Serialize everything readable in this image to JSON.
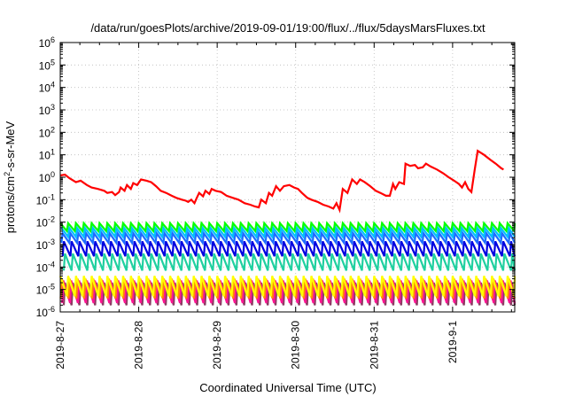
{
  "chart_data": {
    "type": "line",
    "title": "/data/run/goesPlots/archive/2019-09-01/19:00/flux/../flux/5daysMarsFluxes.txt",
    "xlabel": "Coordinated Universal Time (UTC)",
    "ylabel_parts": {
      "pre": "protons/cm",
      "sup": "2",
      "post": "-s-sr-MeV"
    },
    "y_scale": "log",
    "ylim": [
      1e-06,
      1000000.0
    ],
    "x_domain": [
      "2019-08-27",
      "2019-09-01 19:00"
    ],
    "x_ticks": [
      "2019-8-27",
      "2019-8-28",
      "2019-8-29",
      "2019-8-30",
      "2019-8-31",
      "2019-9-1"
    ],
    "y_ticks": [
      {
        "base": "10",
        "exp": "-6"
      },
      {
        "base": "10",
        "exp": "-5"
      },
      {
        "base": "10",
        "exp": "-4"
      },
      {
        "base": "10",
        "exp": "-3"
      },
      {
        "base": "10",
        "exp": "-2"
      },
      {
        "base": "10",
        "exp": "-1"
      },
      {
        "base": "10",
        "exp": "0"
      },
      {
        "base": "10",
        "exp": "1"
      },
      {
        "base": "10",
        "exp": "2"
      },
      {
        "base": "10",
        "exp": "3"
      },
      {
        "base": "10",
        "exp": "4"
      },
      {
        "base": "10",
        "exp": "5"
      },
      {
        "base": "10",
        "exp": "6"
      }
    ],
    "grid": true,
    "legend": "none",
    "series": [
      {
        "color": "#ff0000",
        "pattern": "segments",
        "points": [
          [
            0.0,
            1.2
          ],
          [
            0.06,
            1.3
          ],
          [
            0.12,
            0.9
          ],
          [
            0.2,
            0.6
          ],
          [
            0.26,
            0.7
          ],
          [
            0.34,
            0.45
          ],
          [
            0.4,
            0.35
          ],
          [
            0.48,
            0.3
          ],
          [
            0.56,
            0.25
          ],
          [
            0.6,
            0.2
          ],
          [
            0.66,
            0.22
          ],
          [
            0.7,
            0.16
          ],
          [
            0.75,
            0.22
          ],
          [
            0.77,
            0.35
          ],
          [
            0.82,
            0.25
          ],
          [
            0.85,
            0.45
          ],
          [
            0.9,
            0.3
          ],
          [
            0.93,
            0.55
          ],
          [
            0.98,
            0.45
          ],
          [
            1.03,
            0.8
          ],
          [
            1.1,
            0.7
          ],
          [
            1.16,
            0.6
          ],
          [
            1.22,
            0.4
          ],
          [
            1.28,
            0.25
          ],
          [
            1.35,
            0.2
          ],
          [
            1.42,
            0.15
          ],
          [
            1.48,
            0.12
          ],
          [
            1.55,
            0.1
          ],
          [
            1.6,
            0.09
          ],
          [
            1.63,
            0.08
          ],
          [
            1.67,
            0.1
          ],
          [
            1.71,
            0.07
          ],
          [
            1.74,
            0.12
          ],
          [
            1.77,
            0.2
          ],
          [
            1.82,
            0.14
          ],
          [
            1.85,
            0.25
          ],
          [
            1.9,
            0.18
          ],
          [
            1.93,
            0.3
          ],
          [
            1.98,
            0.25
          ],
          [
            2.05,
            0.22
          ],
          [
            2.12,
            0.15
          ],
          [
            2.2,
            0.12
          ],
          [
            2.27,
            0.1
          ],
          [
            2.35,
            0.07
          ],
          [
            2.42,
            0.06
          ],
          [
            2.48,
            0.05
          ],
          [
            2.53,
            0.045
          ],
          [
            2.56,
            0.1
          ],
          [
            2.62,
            0.07
          ],
          [
            2.66,
            0.2
          ],
          [
            2.7,
            0.15
          ],
          [
            2.75,
            0.4
          ],
          [
            2.8,
            0.25
          ],
          [
            2.85,
            0.4
          ],
          [
            2.92,
            0.45
          ],
          [
            2.98,
            0.35
          ],
          [
            3.03,
            0.3
          ],
          [
            3.08,
            0.2
          ],
          [
            3.15,
            0.12
          ],
          [
            3.2,
            0.1
          ],
          [
            3.28,
            0.08
          ],
          [
            3.35,
            0.06
          ],
          [
            3.42,
            0.05
          ],
          [
            3.48,
            0.04
          ],
          [
            3.52,
            0.07
          ],
          [
            3.56,
            0.035
          ],
          [
            3.6,
            0.3
          ],
          [
            3.66,
            0.2
          ],
          [
            3.72,
            0.8
          ],
          [
            3.78,
            0.5
          ],
          [
            3.82,
            0.8
          ],
          [
            3.88,
            0.6
          ],
          [
            3.95,
            0.4
          ],
          [
            4.02,
            0.25
          ],
          [
            4.08,
            0.2
          ],
          [
            4.15,
            0.15
          ],
          [
            4.2,
            0.15
          ],
          [
            4.24,
            0.5
          ],
          [
            4.27,
            0.3
          ],
          [
            4.32,
            0.6
          ],
          [
            4.38,
            0.5
          ],
          [
            4.4,
            4.0
          ],
          [
            4.46,
            3.2
          ],
          [
            4.52,
            3.5
          ],
          [
            4.56,
            2.5
          ],
          [
            4.62,
            2.8
          ],
          [
            4.66,
            4.0
          ],
          [
            4.72,
            3.0
          ],
          [
            4.8,
            2.2
          ],
          [
            4.88,
            1.5
          ],
          [
            4.95,
            1.0
          ],
          [
            5.02,
            0.7
          ],
          [
            5.08,
            0.5
          ],
          [
            5.12,
            0.35
          ],
          [
            5.16,
            0.6
          ],
          [
            5.2,
            0.3
          ],
          [
            5.24,
            0.22
          ],
          [
            5.28,
            2.0
          ],
          [
            5.32,
            15.0
          ],
          [
            5.4,
            10.0
          ],
          [
            5.48,
            6.0
          ],
          [
            5.55,
            4.0
          ],
          [
            5.62,
            2.5
          ],
          [
            5.65,
            2.2
          ]
        ]
      },
      {
        "color": "#00ff00",
        "pattern": "sawtooth",
        "period": 0.1,
        "phase": 0.0,
        "top": 0.009,
        "bottom": 0.004
      },
      {
        "color": "#00bfff",
        "pattern": "sawtooth",
        "period": 0.1,
        "phase": 0.015,
        "top": 0.0055,
        "bottom": 0.0022
      },
      {
        "color": "#1e6bff",
        "pattern": "sawtooth",
        "period": 0.1,
        "phase": 0.03,
        "top": 0.0032,
        "bottom": 0.0012
      },
      {
        "color": "#0000e0",
        "pattern": "sawtooth",
        "period": 0.1,
        "phase": 0.045,
        "top": 0.0014,
        "bottom": 0.0003
      },
      {
        "color": "#20d0a0",
        "pattern": "sawtooth",
        "period": 0.1,
        "phase": 0.06,
        "top": 0.0004,
        "bottom": 7e-05
      },
      {
        "color": "#ffff00",
        "pattern": "sawtooth",
        "period": 0.1,
        "phase": 0.0,
        "top": 4e-05,
        "bottom": 5e-06
      },
      {
        "color": "#ff8c00",
        "pattern": "sawtooth",
        "period": 0.1,
        "phase": 0.02,
        "top": 3e-05,
        "bottom": 4e-06
      },
      {
        "color": "#ff1493",
        "pattern": "sawtooth",
        "period": 0.1,
        "phase": 0.04,
        "top": 2.5e-05,
        "bottom": 2.5e-06
      },
      {
        "color": "#8b3a62",
        "pattern": "sawtooth",
        "period": 0.1,
        "phase": 0.06,
        "top": 2e-05,
        "bottom": 2e-06
      }
    ]
  }
}
